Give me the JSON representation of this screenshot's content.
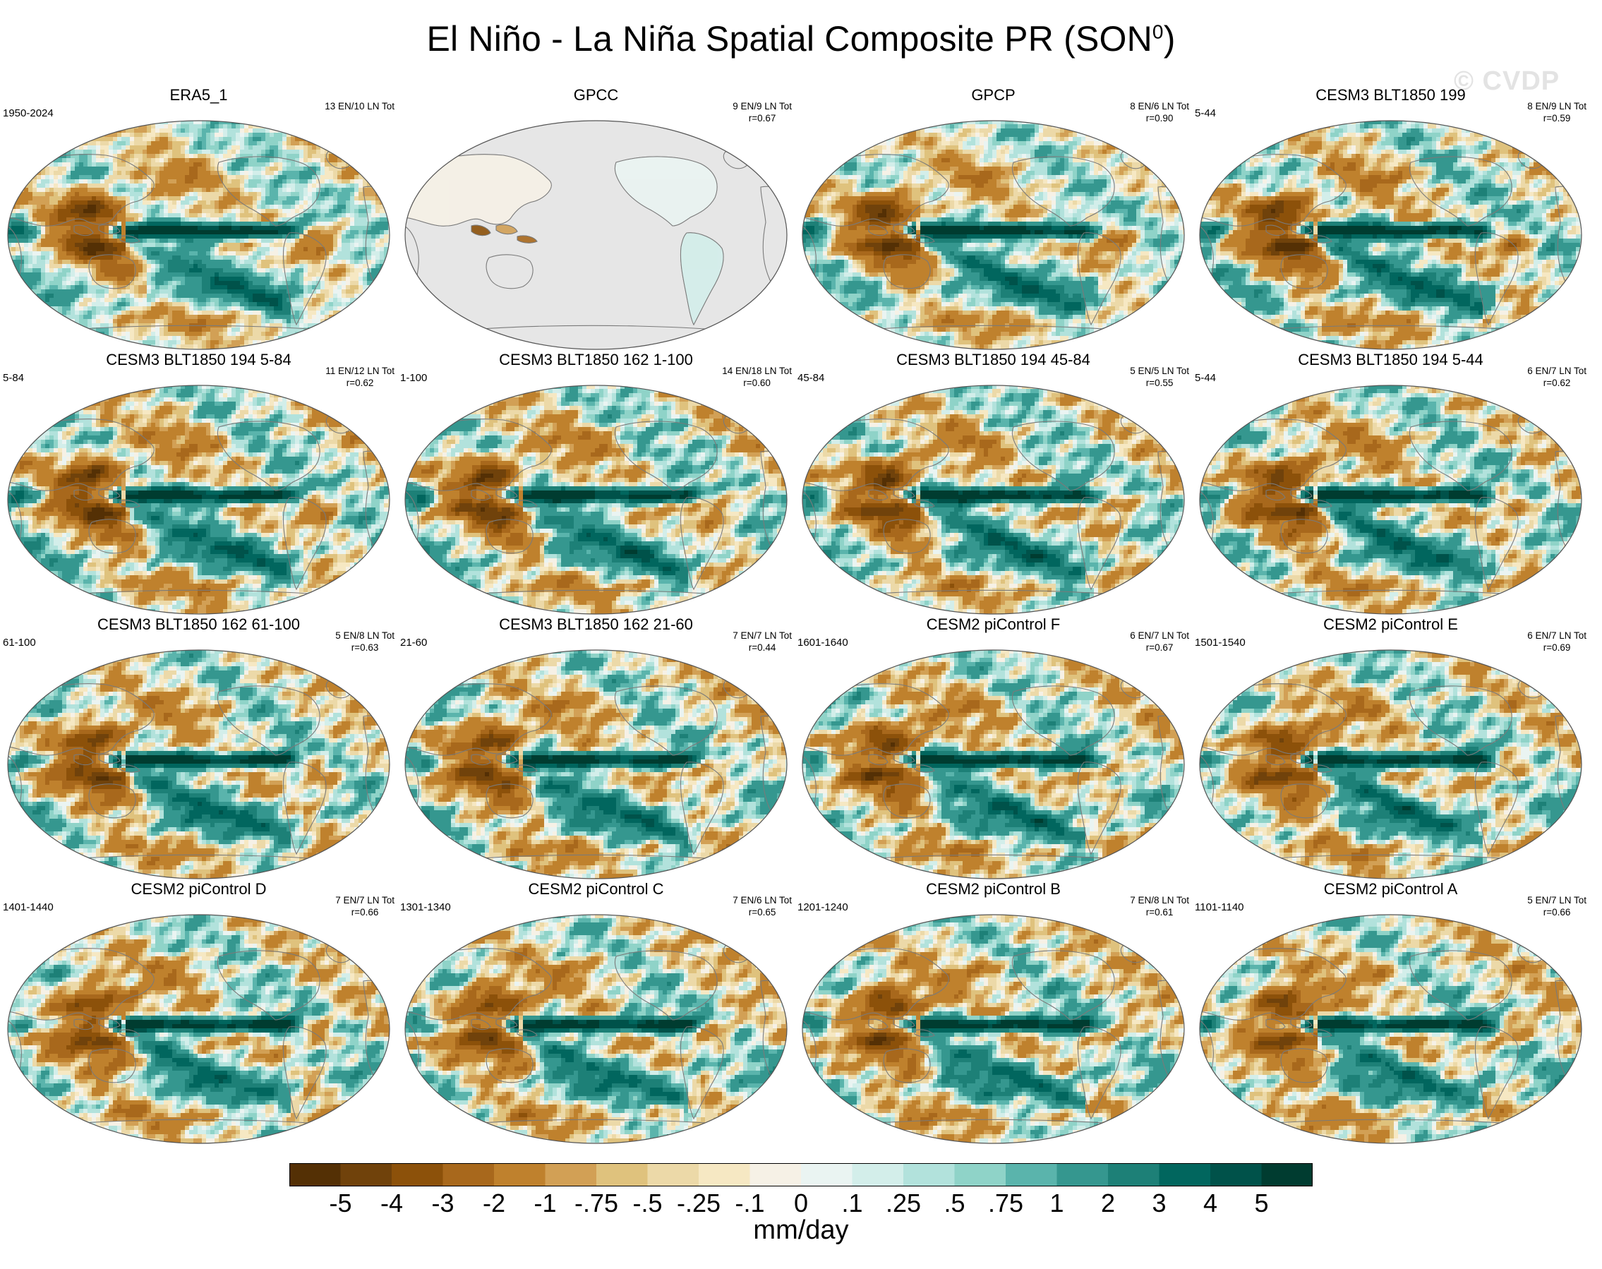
{
  "figure": {
    "title_main": "El Niño - La Niña Spatial Composite PR (SON",
    "title_sup": "0",
    "title_end": ")",
    "watermark": "© CVDP",
    "units": "mm/day"
  },
  "panels": [
    {
      "title": "ERA5_1",
      "period": "1950-2024",
      "counts": "13 EN/10 LN Tot",
      "r": "",
      "style": "obs"
    },
    {
      "title": "GPCC",
      "period": "",
      "counts": "9 EN/9 LN Tot",
      "r": "r=0.67",
      "style": "land"
    },
    {
      "title": "GPCP",
      "period": "",
      "counts": "8 EN/6 LN Tot",
      "r": "r=0.90",
      "style": "obs"
    },
    {
      "title": "CESM3 BLT1850 199",
      "period": "5-44",
      "counts": "8 EN/9 LN Tot",
      "r": "r=0.59",
      "style": "model"
    },
    {
      "title": "CESM3 BLT1850 194 5-84",
      "period": "5-84",
      "counts": "11 EN/12 LN Tot",
      "r": "r=0.62",
      "style": "model"
    },
    {
      "title": "CESM3 BLT1850 162 1-100",
      "period": "1-100",
      "counts": "14 EN/18 LN Tot",
      "r": "r=0.60",
      "style": "model"
    },
    {
      "title": "CESM3 BLT1850 194 45-84",
      "period": "45-84",
      "counts": "5 EN/5 LN Tot",
      "r": "r=0.55",
      "style": "model"
    },
    {
      "title": "CESM3 BLT1850 194 5-44",
      "period": "5-44",
      "counts": "6 EN/7 LN Tot",
      "r": "r=0.62",
      "style": "model"
    },
    {
      "title": "CESM3 BLT1850 162 61-100",
      "period": "61-100",
      "counts": "5 EN/8 LN Tot",
      "r": "r=0.63",
      "style": "model"
    },
    {
      "title": "CESM3 BLT1850 162 21-60",
      "period": "21-60",
      "counts": "7 EN/7 LN Tot",
      "r": "r=0.44",
      "style": "model"
    },
    {
      "title": "CESM2 piControl F",
      "period": "1601-1640",
      "counts": "6 EN/7 LN Tot",
      "r": "r=0.67",
      "style": "model"
    },
    {
      "title": "CESM2 piControl E",
      "period": "1501-1540",
      "counts": "6 EN/7 LN Tot",
      "r": "r=0.69",
      "style": "model"
    },
    {
      "title": "CESM2 piControl D",
      "period": "1401-1440",
      "counts": "7 EN/7 LN Tot",
      "r": "r=0.66",
      "style": "model"
    },
    {
      "title": "CESM2 piControl C",
      "period": "1301-1340",
      "counts": "7 EN/6 LN Tot",
      "r": "r=0.65",
      "style": "model"
    },
    {
      "title": "CESM2 piControl B",
      "period": "1201-1240",
      "counts": "7 EN/8 LN Tot",
      "r": "r=0.61",
      "style": "model"
    },
    {
      "title": "CESM2 piControl A",
      "period": "1101-1140",
      "counts": "5 EN/7 LN Tot",
      "r": "r=0.66",
      "style": "model"
    }
  ],
  "colorbar": {
    "colors": [
      "#543005",
      "#70420b",
      "#8c510a",
      "#a8681c",
      "#bf812d",
      "#d2a055",
      "#dfc27d",
      "#ecd9a8",
      "#f6e8c3",
      "#f6f1e6",
      "#eaf4f2",
      "#d3eeea",
      "#b2e2dc",
      "#8fd3c8",
      "#5ab4ac",
      "#35978f",
      "#1d8077",
      "#01665e",
      "#00524a",
      "#003c30"
    ],
    "tick_labels": [
      "-5",
      "-4",
      "-3",
      "-2",
      "-1",
      "-.75",
      "-.5",
      "-.25",
      "-.1",
      "0",
      ".1",
      ".25",
      ".5",
      ".75",
      "1",
      "2",
      "3",
      "4",
      "5"
    ]
  }
}
